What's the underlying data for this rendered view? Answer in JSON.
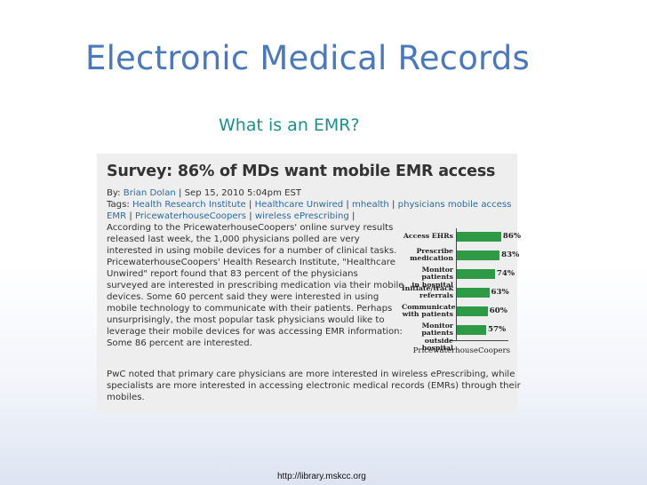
{
  "slide": {
    "title": "Electronic Medical Records",
    "subtitle": "What is an EMR?",
    "footer_url": "http://library.mskcc.org"
  },
  "article": {
    "headline": "Survey: 86% of MDs want mobile EMR access",
    "byline": {
      "by_prefix": "By: ",
      "author": "Brian Dolan",
      "date": " | Sep 15, 2010 5:04pm EST"
    },
    "tags_prefix": "Tags: ",
    "tags_line1": [
      "Health Research Institute",
      "Healthcare Unwired",
      "mhealth",
      "physicians mobile access"
    ],
    "tags_line2": [
      "EMR",
      "PricewaterhouseCoopers",
      "wireless ePrescribing"
    ],
    "tag_separator": " | ",
    "body_lines": [
      "According to the PricewaterhouseCoopers' online survey results",
      "released last week, the 1,000 physicians polled are very",
      "interested in using mobile devices for a number of clinical tasks.",
      "PricewaterhouseCoopers' Health Research Institute, \"Healthcare",
      "Unwired\" report found that 83 percent of the physicians",
      "surveyed are interested in prescribing medication via their mobile",
      "devices. Some 60 percent said they were interested in using",
      "mobile technology to communicate with their patients. Perhaps",
      "unsurprisingly, the most popular task physicians would like to",
      "leverage their mobile devices for was accessing EMR information:",
      "Some 86 percent are interested."
    ],
    "second_paragraph_lines": [
      "PwC noted that primary care physicians are more interested in wireless ePrescribing, while",
      "specialists are more interested in accessing electronic medical records (EMRs) through their",
      "mobiles."
    ]
  },
  "chart_data": {
    "type": "bar",
    "orientation": "horizontal",
    "title": "",
    "xlabel": "",
    "ylabel": "",
    "categories": [
      "Access EHRs",
      "Prescribe medication",
      "Monitor patients in hospital",
      "Initiate/track referrals",
      "Communicate with patients",
      "Monitor patients outside hospital"
    ],
    "category_lines": [
      [
        "Access EHRs"
      ],
      [
        "Prescribe",
        "medication"
      ],
      [
        "Monitor patients",
        "in hospital"
      ],
      [
        "Initiate/track",
        "referrals"
      ],
      [
        "Communicate",
        "with patients"
      ],
      [
        "Monitor patients",
        "outside hospital"
      ]
    ],
    "values": [
      86,
      83,
      74,
      63,
      60,
      57
    ],
    "value_labels": [
      "86%",
      "83%",
      "74%",
      "63%",
      "60%",
      "57%"
    ],
    "xlim": [
      0,
      100
    ],
    "grid": false,
    "legend": "none",
    "source": "PricewaterhouseCoopers",
    "colors": {
      "bar": "#2e9a45"
    }
  },
  "colors": {
    "title": "#4a78b8",
    "subtitle": "#1e8f8b",
    "link": "#2c6aa0"
  }
}
